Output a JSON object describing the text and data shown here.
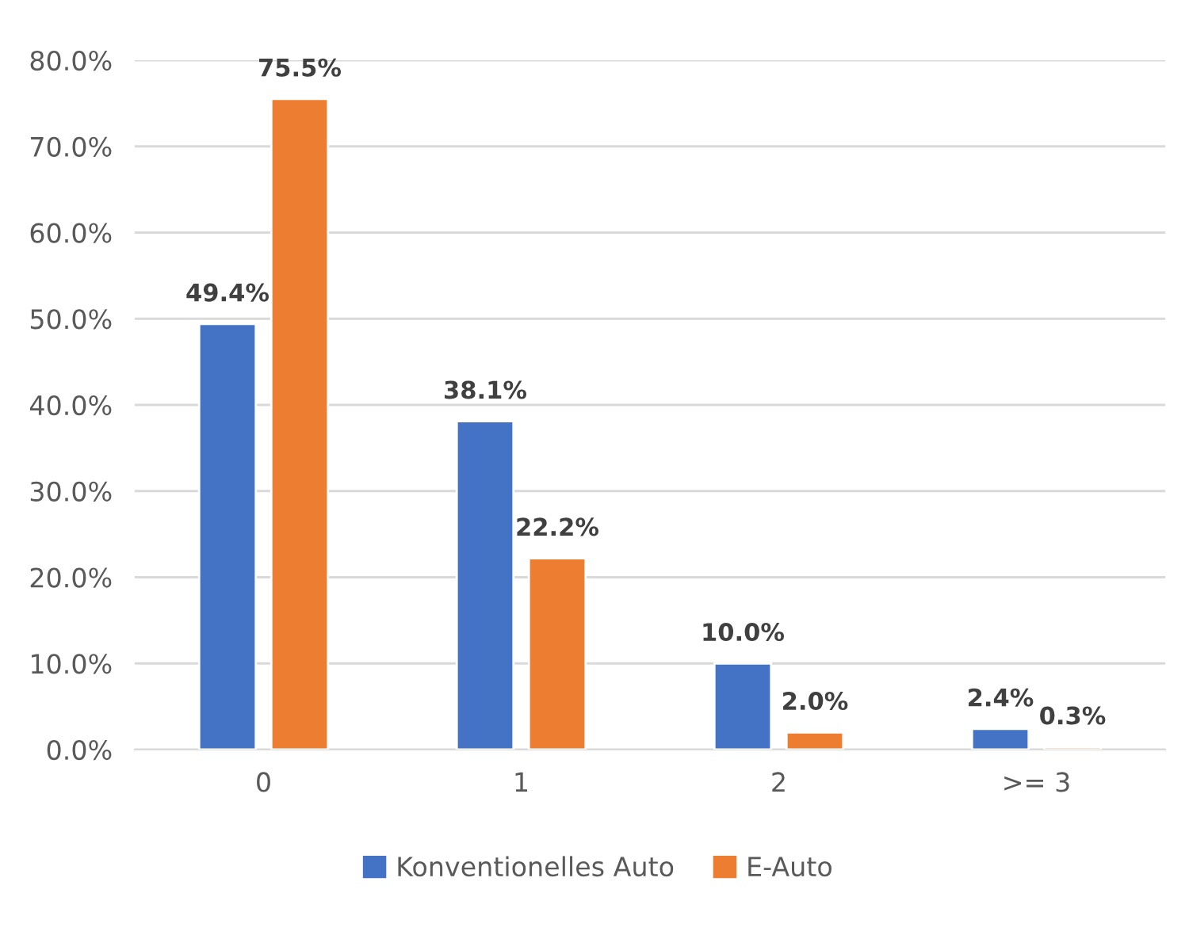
{
  "chart_data": {
    "type": "bar",
    "categories": [
      "0",
      "1",
      "2",
      ">= 3"
    ],
    "series": [
      {
        "name": "Konventionelles Auto",
        "color": "#4472c4",
        "values": [
          49.4,
          38.1,
          10.0,
          2.4
        ],
        "value_labels": [
          "49.4%",
          "38.1%",
          "10.0%",
          "2.4%"
        ]
      },
      {
        "name": "E-Auto",
        "color": "#ed7d31",
        "values": [
          75.5,
          22.2,
          2.0,
          0.3
        ],
        "value_labels": [
          "75.5%",
          "22.2%",
          "2.0%",
          "0.3%"
        ]
      }
    ],
    "ylim": [
      0,
      80
    ],
    "yticks": [
      {
        "value": 0,
        "label": "0.0%"
      },
      {
        "value": 10,
        "label": "10.0%"
      },
      {
        "value": 20,
        "label": "20.0%"
      },
      {
        "value": 30,
        "label": "30.0%"
      },
      {
        "value": 40,
        "label": "40.0%"
      },
      {
        "value": 50,
        "label": "50.0%"
      },
      {
        "value": 60,
        "label": "60.0%"
      },
      {
        "value": 70,
        "label": "70.0%"
      },
      {
        "value": 80,
        "label": "80.0%"
      }
    ],
    "grid": "y",
    "legend": "bottom"
  }
}
